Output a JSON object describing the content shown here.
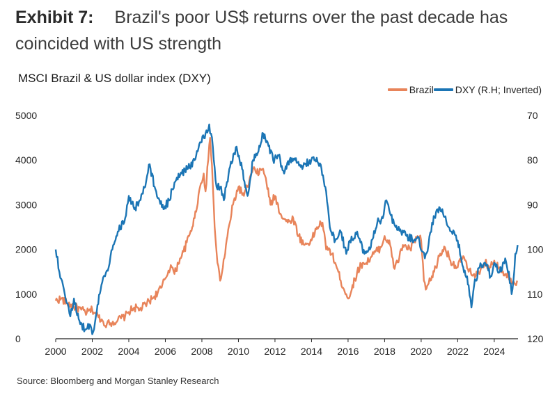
{
  "header": {
    "exhibit_label": "Exhibit 7:",
    "title_line1": "Brazil's poor US$ returns over the past decade has",
    "title_line2": "coincided with US strength"
  },
  "chart_data": {
    "type": "line",
    "title": "MSCI Brazil & US dollar index (DXY)",
    "legend": "top-right",
    "x_ticks": [
      "2000",
      "2002",
      "2004",
      "2006",
      "2008",
      "2010",
      "2012",
      "2014",
      "2016",
      "2018",
      "2020",
      "2022",
      "2024"
    ],
    "xlim": [
      2000,
      2025.3
    ],
    "y_left": {
      "ticks": [
        "0",
        "1000",
        "2000",
        "3000",
        "4000",
        "5000"
      ],
      "lim": [
        0,
        5000
      ]
    },
    "y_right": {
      "ticks": [
        "70",
        "80",
        "90",
        "100",
        "110",
        "120"
      ],
      "lim": [
        70,
        120
      ],
      "inverted": true
    },
    "series": [
      {
        "name": "Brazil",
        "axis": "left",
        "color": "#e8845a",
        "points": [
          [
            2000.0,
            850
          ],
          [
            2000.3,
            900
          ],
          [
            2000.6,
            800
          ],
          [
            2001.0,
            720
          ],
          [
            2001.4,
            650
          ],
          [
            2001.7,
            580
          ],
          [
            2002.0,
            650
          ],
          [
            2002.3,
            520
          ],
          [
            2002.6,
            380
          ],
          [
            2002.8,
            330
          ],
          [
            2003.0,
            350
          ],
          [
            2003.4,
            420
          ],
          [
            2003.8,
            500
          ],
          [
            2004.0,
            600
          ],
          [
            2004.3,
            700
          ],
          [
            2004.6,
            650
          ],
          [
            2005.0,
            800
          ],
          [
            2005.4,
            950
          ],
          [
            2005.8,
            1150
          ],
          [
            2006.0,
            1350
          ],
          [
            2006.3,
            1650
          ],
          [
            2006.5,
            1450
          ],
          [
            2006.8,
            1800
          ],
          [
            2007.0,
            1950
          ],
          [
            2007.3,
            2300
          ],
          [
            2007.6,
            2700
          ],
          [
            2007.9,
            3400
          ],
          [
            2008.1,
            3700
          ],
          [
            2008.2,
            3300
          ],
          [
            2008.35,
            4000
          ],
          [
            2008.45,
            4500
          ],
          [
            2008.55,
            3900
          ],
          [
            2008.7,
            2500
          ],
          [
            2008.85,
            1700
          ],
          [
            2009.0,
            1300
          ],
          [
            2009.15,
            1600
          ],
          [
            2009.4,
            2300
          ],
          [
            2009.7,
            3000
          ],
          [
            2010.0,
            3400
          ],
          [
            2010.3,
            3200
          ],
          [
            2010.5,
            3400
          ],
          [
            2010.8,
            3800
          ],
          [
            2011.0,
            3700
          ],
          [
            2011.3,
            3800
          ],
          [
            2011.5,
            3600
          ],
          [
            2011.75,
            3000
          ],
          [
            2012.0,
            3200
          ],
          [
            2012.3,
            2800
          ],
          [
            2012.7,
            2600
          ],
          [
            2013.0,
            2700
          ],
          [
            2013.3,
            2300
          ],
          [
            2013.6,
            2100
          ],
          [
            2014.0,
            2200
          ],
          [
            2014.3,
            2500
          ],
          [
            2014.6,
            2600
          ],
          [
            2014.8,
            2000
          ],
          [
            2015.0,
            2000
          ],
          [
            2015.3,
            1700
          ],
          [
            2015.6,
            1300
          ],
          [
            2015.9,
            1000
          ],
          [
            2016.0,
            900
          ],
          [
            2016.2,
            1100
          ],
          [
            2016.5,
            1500
          ],
          [
            2016.8,
            1700
          ],
          [
            2017.0,
            1700
          ],
          [
            2017.4,
            1900
          ],
          [
            2017.8,
            2050
          ],
          [
            2018.0,
            2300
          ],
          [
            2018.3,
            2100
          ],
          [
            2018.5,
            1600
          ],
          [
            2018.8,
            1800
          ],
          [
            2019.0,
            2100
          ],
          [
            2019.4,
            2000
          ],
          [
            2019.8,
            2300
          ],
          [
            2020.0,
            2200
          ],
          [
            2020.15,
            1300
          ],
          [
            2020.25,
            1100
          ],
          [
            2020.5,
            1300
          ],
          [
            2020.8,
            1600
          ],
          [
            2021.0,
            1850
          ],
          [
            2021.3,
            2050
          ],
          [
            2021.6,
            1750
          ],
          [
            2022.0,
            1600
          ],
          [
            2022.3,
            1850
          ],
          [
            2022.6,
            1500
          ],
          [
            2022.9,
            1450
          ],
          [
            2023.2,
            1450
          ],
          [
            2023.5,
            1700
          ],
          [
            2023.8,
            1600
          ],
          [
            2024.0,
            1750
          ],
          [
            2024.3,
            1600
          ],
          [
            2024.6,
            1450
          ],
          [
            2024.9,
            1350
          ],
          [
            2025.1,
            1250
          ],
          [
            2025.25,
            1300
          ]
        ]
      },
      {
        "name": "DXY (R.H; Inverted)",
        "axis": "right",
        "color": "#1b75b5",
        "points": [
          [
            2000.0,
            100
          ],
          [
            2000.2,
            105
          ],
          [
            2000.4,
            108
          ],
          [
            2000.6,
            112
          ],
          [
            2000.8,
            115
          ],
          [
            2001.0,
            111
          ],
          [
            2001.3,
            116
          ],
          [
            2001.6,
            118
          ],
          [
            2001.9,
            117
          ],
          [
            2002.0,
            119
          ],
          [
            2002.2,
            115
          ],
          [
            2002.5,
            108
          ],
          [
            2002.7,
            106
          ],
          [
            2002.9,
            104
          ],
          [
            2003.1,
            100
          ],
          [
            2003.4,
            96
          ],
          [
            2003.8,
            93
          ],
          [
            2004.0,
            88
          ],
          [
            2004.3,
            91
          ],
          [
            2004.6,
            89
          ],
          [
            2004.9,
            86
          ],
          [
            2005.1,
            81
          ],
          [
            2005.5,
            87
          ],
          [
            2005.9,
            91
          ],
          [
            2006.2,
            89
          ],
          [
            2006.5,
            85
          ],
          [
            2006.9,
            83
          ],
          [
            2007.2,
            82
          ],
          [
            2007.6,
            80
          ],
          [
            2007.9,
            76
          ],
          [
            2008.2,
            74
          ],
          [
            2008.4,
            72
          ],
          [
            2008.6,
            77
          ],
          [
            2008.8,
            86
          ],
          [
            2009.0,
            86
          ],
          [
            2009.2,
            89
          ],
          [
            2009.5,
            82
          ],
          [
            2009.9,
            77
          ],
          [
            2010.2,
            82
          ],
          [
            2010.5,
            88
          ],
          [
            2010.8,
            80
          ],
          [
            2011.1,
            78
          ],
          [
            2011.35,
            74
          ],
          [
            2011.6,
            76
          ],
          [
            2011.9,
            80
          ],
          [
            2012.2,
            79
          ],
          [
            2012.5,
            83
          ],
          [
            2012.8,
            80
          ],
          [
            2013.1,
            80
          ],
          [
            2013.5,
            82
          ],
          [
            2013.9,
            80
          ],
          [
            2014.2,
            80
          ],
          [
            2014.5,
            81
          ],
          [
            2014.8,
            87
          ],
          [
            2015.0,
            95
          ],
          [
            2015.3,
            98
          ],
          [
            2015.6,
            96
          ],
          [
            2015.9,
            101
          ],
          [
            2016.1,
            98
          ],
          [
            2016.5,
            96
          ],
          [
            2016.9,
            101
          ],
          [
            2017.2,
            100
          ],
          [
            2017.6,
            94
          ],
          [
            2017.9,
            93
          ],
          [
            2018.1,
            89
          ],
          [
            2018.3,
            92
          ],
          [
            2018.6,
            95
          ],
          [
            2018.9,
            96
          ],
          [
            2019.2,
            97
          ],
          [
            2019.6,
            98
          ],
          [
            2019.9,
            98
          ],
          [
            2020.2,
            102
          ],
          [
            2020.4,
            99
          ],
          [
            2020.6,
            94
          ],
          [
            2020.9,
            91
          ],
          [
            2021.2,
            92
          ],
          [
            2021.5,
            95
          ],
          [
            2021.8,
            96
          ],
          [
            2022.0,
            98
          ],
          [
            2022.3,
            104
          ],
          [
            2022.6,
            108
          ],
          [
            2022.75,
            113
          ],
          [
            2022.9,
            108
          ],
          [
            2023.2,
            104
          ],
          [
            2023.5,
            103
          ],
          [
            2023.8,
            106
          ],
          [
            2024.0,
            103
          ],
          [
            2024.3,
            105
          ],
          [
            2024.6,
            102
          ],
          [
            2024.8,
            105
          ],
          [
            2024.95,
            110
          ],
          [
            2025.05,
            107
          ],
          [
            2025.15,
            101
          ],
          [
            2025.28,
            99
          ]
        ]
      }
    ]
  },
  "source": "Source: Bloomberg and Morgan Stanley Research"
}
